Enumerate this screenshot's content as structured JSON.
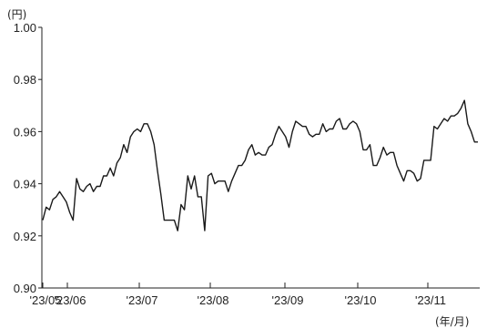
{
  "chart_data": {
    "type": "line",
    "title": "",
    "xlabel": "(年/月)",
    "ylabel": "(円)",
    "ylim": [
      0.9,
      1.0
    ],
    "yticks": [
      "1.00",
      "0.98",
      "0.96",
      "0.94",
      "0.92",
      "0.90"
    ],
    "xticks": [
      "'23/05",
      "'23/06",
      "'23/07",
      "'23/08",
      "'23/09",
      "'23/10",
      "'23/11"
    ],
    "grid": false,
    "line_color": "#1a1a1a",
    "series": [
      {
        "values": [
          0.926,
          0.931,
          0.93,
          0.934,
          0.935,
          0.937,
          0.935,
          0.933,
          0.929,
          0.926,
          0.942,
          0.938,
          0.937,
          0.939,
          0.94,
          0.937,
          0.939,
          0.939,
          0.943,
          0.943,
          0.946,
          0.943,
          0.948,
          0.95,
          0.955,
          0.952,
          0.958,
          0.96,
          0.961,
          0.96,
          0.963,
          0.963,
          0.96,
          0.955,
          0.945,
          0.936,
          0.926,
          0.926,
          0.926,
          0.926,
          0.922,
          0.932,
          0.93,
          0.943,
          0.938,
          0.943,
          0.935,
          0.935,
          0.922,
          0.943,
          0.944,
          0.94,
          0.941,
          0.941,
          0.941,
          0.937,
          0.941,
          0.944,
          0.947,
          0.947,
          0.949,
          0.953,
          0.955,
          0.951,
          0.952,
          0.951,
          0.951,
          0.954,
          0.955,
          0.959,
          0.962,
          0.96,
          0.958,
          0.954,
          0.96,
          0.964,
          0.963,
          0.962,
          0.962,
          0.959,
          0.958,
          0.959,
          0.959,
          0.963,
          0.96,
          0.961,
          0.961,
          0.964,
          0.965,
          0.961,
          0.961,
          0.963,
          0.964,
          0.963,
          0.96,
          0.953,
          0.953,
          0.955,
          0.947,
          0.947,
          0.95,
          0.954,
          0.951,
          0.952,
          0.952,
          0.947,
          0.944,
          0.941,
          0.945,
          0.945,
          0.944,
          0.941,
          0.942,
          0.949,
          0.949,
          0.949,
          0.962,
          0.961,
          0.963,
          0.965,
          0.964,
          0.966,
          0.966,
          0.967,
          0.969,
          0.972,
          0.963,
          0.96,
          0.956,
          0.956
        ]
      }
    ]
  }
}
